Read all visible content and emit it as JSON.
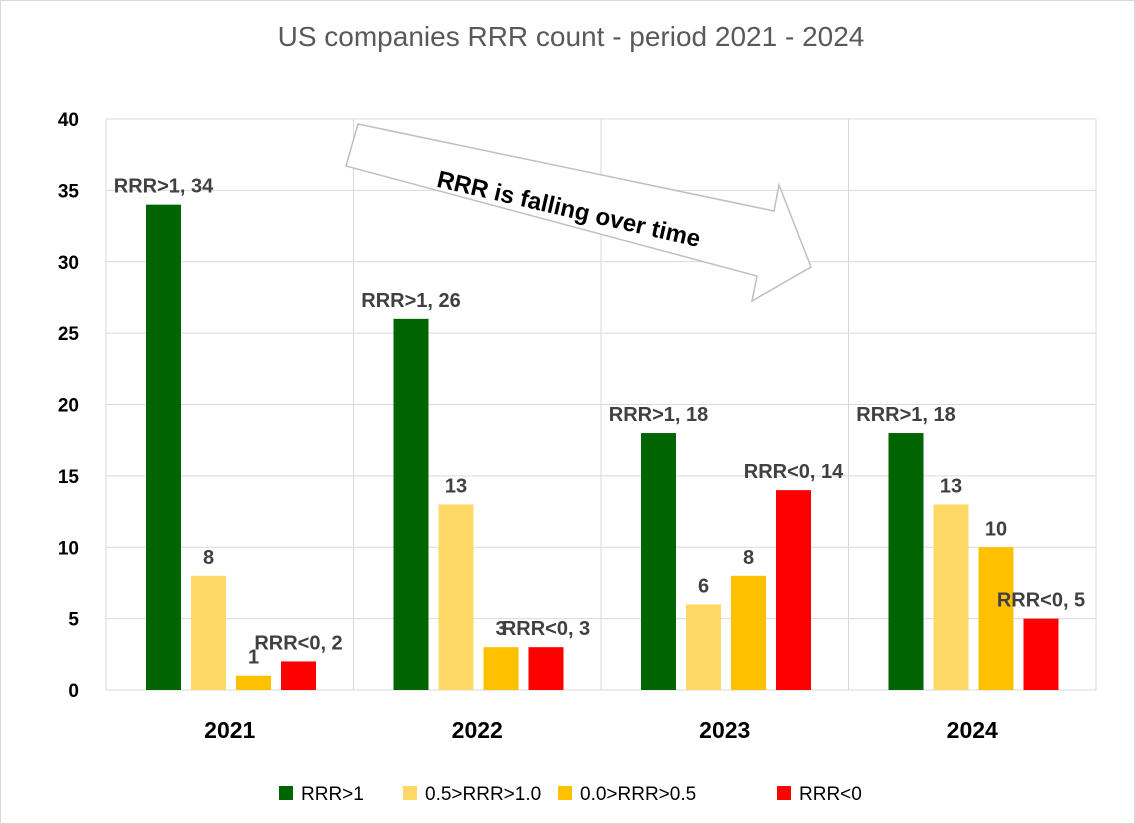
{
  "chart_data": {
    "type": "bar",
    "title": "US companies RRR count - period 2021 - 2024",
    "categories": [
      "2021",
      "2022",
      "2023",
      "2024"
    ],
    "ylim": [
      0,
      40
    ],
    "yticks": [
      0,
      5,
      10,
      15,
      20,
      25,
      30,
      35,
      40
    ],
    "grid": true,
    "legend_position": "bottom",
    "series": [
      {
        "name": "RRR>1",
        "color": "#006400",
        "values": [
          34,
          26,
          18,
          18
        ],
        "labels": [
          "RRR>1, 34",
          "RRR>1, 26",
          "RRR>1, 18",
          "RRR>1, 18"
        ]
      },
      {
        "name": "0.5>RRR>1.0",
        "color": "#FFD966",
        "values": [
          8,
          13,
          6,
          13
        ],
        "labels": [
          "8",
          "13",
          "6",
          "13"
        ]
      },
      {
        "name": "0.0>RRR>0.5",
        "color": "#FFC000",
        "values": [
          1,
          3,
          8,
          10
        ],
        "labels": [
          "1",
          "3",
          "8",
          "10"
        ]
      },
      {
        "name": "RRR<0",
        "color": "#FF0000",
        "values": [
          2,
          3,
          14,
          5
        ],
        "labels": [
          "RRR<0, 2",
          "RRR<0, 3",
          "RRR<0, 14",
          "RRR<0, 5"
        ]
      }
    ],
    "annotation": "RRR is falling over time"
  }
}
